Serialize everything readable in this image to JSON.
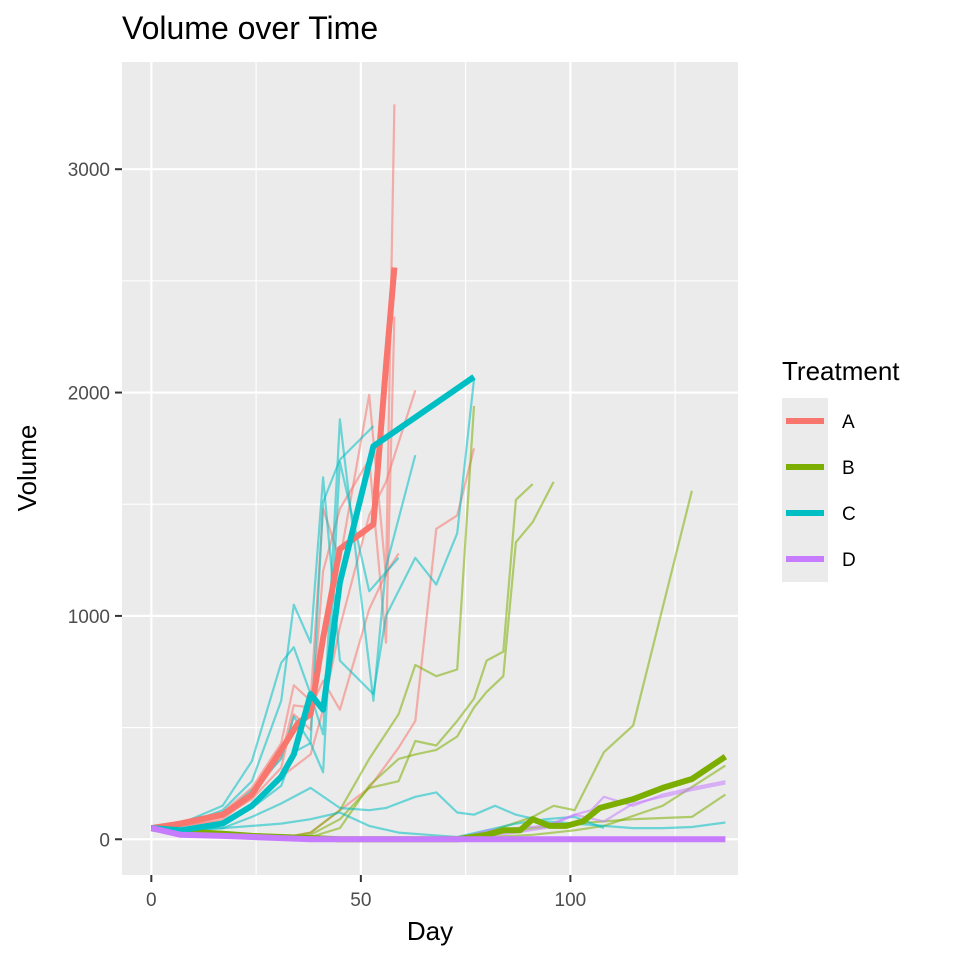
{
  "chart_data": {
    "type": "line",
    "title": "Volume over Time",
    "xlabel": "Day",
    "ylabel": "Volume",
    "xlim": [
      -7,
      140
    ],
    "ylim": [
      -160,
      3480
    ],
    "x_ticks": [
      0,
      50,
      100
    ],
    "y_ticks": [
      0,
      1000,
      2000,
      3000
    ],
    "grid": true,
    "legend": {
      "title": "Treatment",
      "position": "right"
    },
    "colors": {
      "A": "#F8766D",
      "B": "#7CAE00",
      "C": "#00BFC4",
      "D": "#C77CFF"
    },
    "summary_series": [
      {
        "name": "A",
        "x": [
          0,
          7,
          17,
          24,
          31,
          35,
          38,
          41,
          45,
          53,
          56,
          58
        ],
        "y": [
          50,
          70,
          110,
          200,
          400,
          520,
          560,
          900,
          1300,
          1410,
          2120,
          2560
        ]
      },
      {
        "name": "B",
        "x": [
          0,
          7,
          17,
          24,
          31,
          38,
          45,
          52,
          59,
          66,
          73,
          80,
          84,
          88,
          91,
          95,
          99,
          103,
          107,
          115,
          122,
          129,
          137
        ],
        "y": [
          50,
          35,
          25,
          15,
          10,
          5,
          0,
          0,
          0,
          0,
          0,
          20,
          40,
          40,
          90,
          60,
          60,
          80,
          140,
          180,
          230,
          270,
          370
        ]
      },
      {
        "name": "C",
        "x": [
          0,
          7,
          17,
          24,
          31,
          34,
          38,
          41,
          45,
          53,
          77
        ],
        "y": [
          50,
          40,
          70,
          150,
          280,
          380,
          650,
          580,
          1150,
          1760,
          2070
        ]
      },
      {
        "name": "D",
        "x": [
          0,
          7,
          17,
          24,
          31,
          38,
          45,
          70,
          100,
          137
        ],
        "y": [
          50,
          20,
          15,
          10,
          5,
          0,
          0,
          0,
          0,
          0
        ]
      }
    ],
    "individual_series": [
      {
        "name": "A",
        "x": [
          0,
          7,
          17,
          24,
          31,
          34,
          38,
          41,
          45,
          52,
          56,
          58
        ],
        "y": [
          50,
          80,
          120,
          230,
          430,
          690,
          620,
          1480,
          1250,
          1990,
          1180,
          3290
        ]
      },
      {
        "name": "A",
        "x": [
          0,
          7,
          17,
          24,
          31,
          34,
          38,
          41,
          45,
          52,
          56,
          58
        ],
        "y": [
          50,
          70,
          100,
          180,
          320,
          560,
          490,
          1200,
          1480,
          1700,
          880,
          2340
        ]
      },
      {
        "name": "A",
        "x": [
          0,
          7,
          17,
          24,
          31,
          34,
          38,
          41,
          45,
          52,
          56,
          59
        ],
        "y": [
          50,
          60,
          90,
          190,
          370,
          600,
          590,
          710,
          580,
          1030,
          1190,
          1280
        ]
      },
      {
        "name": "A",
        "x": [
          0,
          7,
          17,
          24,
          31,
          38,
          41,
          45,
          52,
          56,
          63
        ],
        "y": [
          50,
          60,
          80,
          140,
          280,
          380,
          580,
          950,
          1450,
          1600,
          2010
        ]
      },
      {
        "name": "A",
        "x": [
          0,
          7,
          17,
          24,
          31,
          38,
          45,
          52,
          59,
          63,
          68,
          73,
          77
        ],
        "y": [
          40,
          30,
          20,
          10,
          5,
          30,
          130,
          230,
          410,
          530,
          1390,
          1450,
          1750
        ]
      },
      {
        "name": "B",
        "x": [
          0,
          7,
          17,
          24,
          31,
          38,
          45,
          52,
          59,
          63,
          68,
          73,
          77
        ],
        "y": [
          50,
          30,
          20,
          10,
          5,
          30,
          130,
          360,
          560,
          780,
          730,
          760,
          1940
        ]
      },
      {
        "name": "B",
        "x": [
          0,
          7,
          17,
          24,
          31,
          38,
          45,
          52,
          59,
          63,
          68,
          73,
          77,
          80,
          84,
          87,
          91
        ],
        "y": [
          50,
          30,
          20,
          10,
          5,
          20,
          90,
          230,
          260,
          440,
          420,
          530,
          630,
          800,
          840,
          1520,
          1590
        ]
      },
      {
        "name": "B",
        "x": [
          0,
          7,
          17,
          24,
          31,
          38,
          45,
          52,
          59,
          63,
          68,
          73,
          77,
          80,
          84,
          87,
          91,
          96
        ],
        "y": [
          50,
          30,
          20,
          10,
          5,
          10,
          50,
          240,
          360,
          380,
          400,
          460,
          590,
          660,
          730,
          1330,
          1420,
          1600
        ]
      },
      {
        "name": "B",
        "x": [
          0,
          7,
          17,
          24,
          31,
          38,
          45,
          52,
          59,
          70,
          80,
          91,
          96,
          101,
          108,
          115,
          129
        ],
        "y": [
          40,
          20,
          10,
          5,
          0,
          0,
          0,
          0,
          0,
          0,
          30,
          100,
          150,
          130,
          390,
          510,
          1560
        ]
      },
      {
        "name": "B",
        "x": [
          0,
          7,
          17,
          24,
          31,
          38,
          45,
          52,
          70,
          80,
          91,
          101,
          108,
          115,
          122,
          129,
          137
        ],
        "y": [
          40,
          20,
          10,
          5,
          0,
          0,
          0,
          0,
          0,
          20,
          50,
          70,
          80,
          90,
          95,
          100,
          200
        ]
      },
      {
        "name": "B",
        "x": [
          0,
          7,
          17,
          24,
          31,
          38,
          45,
          70,
          91,
          101,
          108,
          122,
          137
        ],
        "y": [
          40,
          20,
          10,
          5,
          0,
          0,
          0,
          0,
          20,
          40,
          60,
          150,
          330
        ]
      },
      {
        "name": "C",
        "x": [
          0,
          7,
          17,
          24,
          31,
          34,
          38,
          41,
          45,
          53,
          56,
          63,
          68,
          73,
          77
        ],
        "y": [
          50,
          60,
          130,
          260,
          620,
          1050,
          880,
          1620,
          800,
          650,
          1000,
          1260,
          1140,
          1370,
          2060
        ]
      },
      {
        "name": "C",
        "x": [
          0,
          7,
          17,
          24,
          31,
          34,
          38,
          41,
          45,
          53,
          56,
          63
        ],
        "y": [
          50,
          70,
          150,
          350,
          790,
          860,
          650,
          470,
          1880,
          620,
          1220,
          1720
        ]
      },
      {
        "name": "C",
        "x": [
          0,
          7,
          17,
          24,
          31,
          34,
          38,
          41,
          45,
          53
        ],
        "y": [
          50,
          60,
          110,
          220,
          360,
          550,
          430,
          1510,
          1700,
          1850
        ]
      },
      {
        "name": "C",
        "x": [
          0,
          7,
          17,
          24,
          31,
          34,
          38,
          41,
          45,
          52,
          59
        ],
        "y": [
          50,
          40,
          70,
          140,
          240,
          390,
          430,
          300,
          1690,
          1110,
          1260
        ]
      },
      {
        "name": "C",
        "x": [
          0,
          7,
          17,
          24,
          31,
          38,
          45,
          52,
          56,
          63,
          68,
          73,
          77,
          82,
          87,
          94,
          101,
          108,
          115,
          122,
          129,
          137
        ],
        "y": [
          50,
          40,
          50,
          100,
          160,
          230,
          140,
          130,
          140,
          190,
          210,
          120,
          110,
          150,
          110,
          80,
          70,
          60,
          50,
          50,
          55,
          75
        ]
      },
      {
        "name": "C",
        "x": [
          0,
          7,
          17,
          24,
          31,
          38,
          45,
          52,
          59,
          66,
          73,
          80,
          87,
          94,
          101,
          108
        ],
        "y": [
          50,
          40,
          50,
          60,
          70,
          90,
          120,
          60,
          30,
          20,
          10,
          40,
          70,
          90,
          100,
          50
        ]
      },
      {
        "name": "D",
        "x": [
          0,
          7,
          17,
          24,
          31,
          38,
          45,
          73,
          80,
          87,
          94,
          101,
          105,
          108,
          115,
          122,
          129,
          137
        ],
        "y": [
          50,
          20,
          10,
          5,
          0,
          0,
          0,
          0,
          40,
          50,
          60,
          110,
          130,
          190,
          150,
          200,
          230,
          260
        ]
      },
      {
        "name": "D",
        "x": [
          0,
          7,
          17,
          24,
          31,
          38,
          45,
          73,
          87,
          94,
          101,
          108,
          115,
          129,
          137
        ],
        "y": [
          40,
          20,
          10,
          5,
          0,
          0,
          0,
          0,
          30,
          50,
          110,
          80,
          160,
          220,
          250
        ]
      }
    ]
  }
}
